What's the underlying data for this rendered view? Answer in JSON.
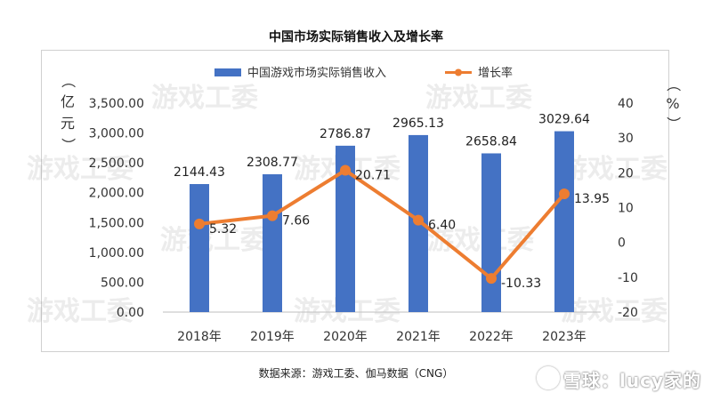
{
  "chart_data": {
    "type": "bar",
    "title": "中国市场实际销售收入及增长率",
    "categories": [
      "2018年",
      "2019年",
      "2020年",
      "2021年",
      "2022年",
      "2023年"
    ],
    "series": [
      {
        "name": "中国游戏市场实际销售收入",
        "type": "bar",
        "axis": "left",
        "values": [
          2144.43,
          2308.77,
          2786.87,
          2965.13,
          2658.84,
          3029.64
        ],
        "labels": [
          "2144.43",
          "2308.77",
          "2786.87",
          "2965.13",
          "2658.84",
          "3029.64"
        ]
      },
      {
        "name": "增长率",
        "type": "line",
        "axis": "right",
        "values": [
          5.32,
          7.66,
          20.71,
          6.4,
          -10.33,
          13.95
        ],
        "labels": [
          "5.32",
          "7.66",
          "20.71",
          "6.40",
          "-10.33",
          "13.95"
        ]
      }
    ],
    "ylabel_left": "（亿元）",
    "ylabel_right": "（%）",
    "ylim_left": [
      0,
      3500
    ],
    "ylim_right": [
      -20,
      40
    ],
    "yticks_left": [
      "0.00",
      "500.00",
      "1,000.00",
      "1,500.00",
      "2,000.00",
      "2,500.00",
      "3,000.00",
      "3,500.00"
    ],
    "yticks_right": [
      "-20",
      "-10",
      "0",
      "10",
      "20",
      "30",
      "40"
    ],
    "legend_position": "top-center",
    "grid": false
  },
  "colors": {
    "bar": "#4472C4",
    "line": "#ED7D31"
  },
  "source_note": "数据来源：游戏工委、伽马数据（CNG）",
  "watermark": "游戏工委",
  "brand": "雪球：lucy家的"
}
